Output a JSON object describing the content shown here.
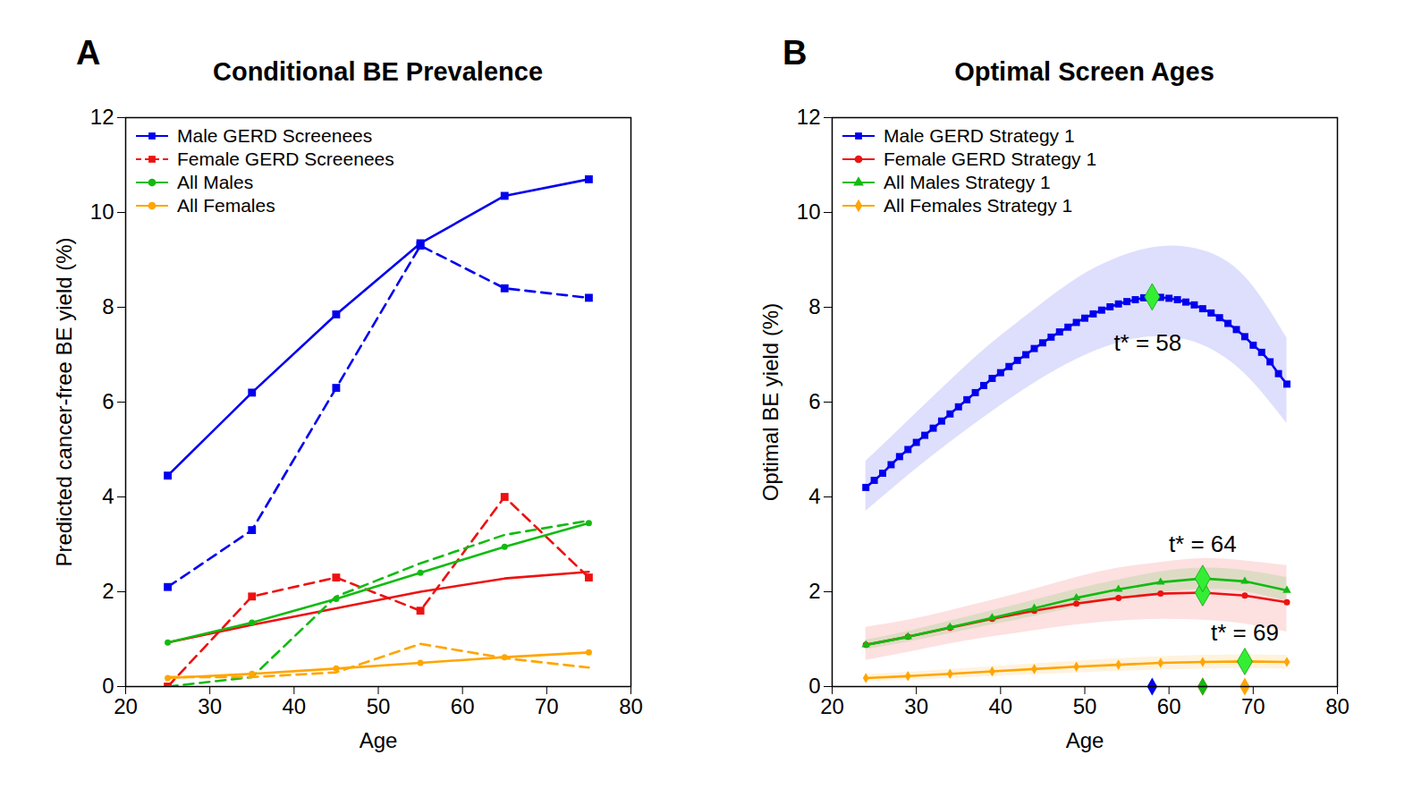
{
  "chart_data": [
    {
      "type": "line",
      "panel_label": "A",
      "title": "Conditional BE Prevalence",
      "x_label": "Age",
      "y_label": "Predicted cancer-free BE yield (%)",
      "xlim": [
        20,
        80
      ],
      "xticks": [
        20,
        30,
        40,
        50,
        60,
        70,
        80
      ],
      "ylim": [
        0,
        12
      ],
      "yticks": [
        0,
        2,
        4,
        6,
        8,
        10,
        12
      ],
      "legend": "top-left",
      "x": [
        25,
        35,
        45,
        55,
        65,
        75
      ],
      "series": [
        {
          "name": "Male GERD Screenees",
          "color": "#0000ee",
          "marker": "square",
          "line_style": "solid",
          "values": [
            4.45,
            6.2,
            7.85,
            9.35,
            10.35,
            10.7
          ]
        },
        {
          "name": null,
          "color": "#0000ee",
          "marker": "square",
          "line_style": "dashed",
          "values": [
            2.1,
            3.3,
            6.3,
            9.3,
            8.4,
            8.2
          ]
        },
        {
          "name": "Female GERD Screenees",
          "color": "#ee1111",
          "marker": "square",
          "line_style": "dashed",
          "values": [
            0.0,
            1.9,
            2.3,
            1.6,
            4.0,
            2.3
          ]
        },
        {
          "name": null,
          "color": "#ee1111",
          "line_style": "solid",
          "values": [
            0.93,
            1.3,
            1.65,
            2.0,
            2.28,
            2.42
          ]
        },
        {
          "name": "All Males",
          "color": "#11bb11",
          "marker": "circle",
          "line_style": "solid",
          "values": [
            0.93,
            1.35,
            1.85,
            2.4,
            2.95,
            3.45
          ]
        },
        {
          "name": null,
          "color": "#11bb11",
          "line_style": "dashed",
          "values": [
            0.0,
            0.2,
            1.9,
            2.6,
            3.2,
            3.5
          ]
        },
        {
          "name": "All Females",
          "color": "#ffa500",
          "marker": "circle",
          "line_style": "solid",
          "values": [
            0.18,
            0.27,
            0.38,
            0.5,
            0.62,
            0.72
          ]
        },
        {
          "name": null,
          "color": "#ffa500",
          "line_style": "dashed",
          "values": [
            0.2,
            0.2,
            0.3,
            0.9,
            0.6,
            0.4
          ]
        }
      ]
    },
    {
      "type": "line",
      "panel_label": "B",
      "title": "Optimal Screen Ages",
      "x_label": "Age",
      "y_label": "Optimal BE yield (%)",
      "xlim": [
        20,
        80
      ],
      "xticks": [
        20,
        30,
        40,
        50,
        60,
        70,
        80
      ],
      "ylim": [
        0,
        12
      ],
      "yticks": [
        0,
        2,
        4,
        6,
        8,
        10,
        12
      ],
      "legend": "top-left",
      "series": [
        {
          "name": "Male GERD Strategy 1",
          "color": "#0000ee",
          "marker": "square",
          "line_style": "solid",
          "x": [
            24,
            25,
            26,
            27,
            28,
            29,
            30,
            31,
            32,
            33,
            34,
            35,
            36,
            37,
            38,
            39,
            40,
            41,
            42,
            43,
            44,
            45,
            46,
            47,
            48,
            49,
            50,
            51,
            52,
            53,
            54,
            55,
            56,
            57,
            58,
            59,
            60,
            61,
            62,
            63,
            64,
            65,
            66,
            67,
            68,
            69,
            70,
            71,
            72,
            73,
            74
          ],
          "values": [
            4.2,
            4.35,
            4.5,
            4.68,
            4.85,
            5.0,
            5.15,
            5.3,
            5.45,
            5.6,
            5.75,
            5.9,
            6.05,
            6.2,
            6.35,
            6.5,
            6.62,
            6.75,
            6.88,
            7.0,
            7.13,
            7.25,
            7.37,
            7.48,
            7.58,
            7.68,
            7.77,
            7.86,
            7.94,
            8.01,
            8.07,
            8.12,
            8.16,
            8.2,
            8.22,
            8.21,
            8.19,
            8.16,
            8.11,
            8.05,
            7.97,
            7.88,
            7.78,
            7.66,
            7.53,
            7.38,
            7.2,
            7.05,
            6.85,
            6.6,
            6.38
          ],
          "band": {
            "x": [
              24,
              29,
              34,
              39,
              44,
              49,
              54,
              59,
              64,
              69,
              74
            ],
            "lower": [
              3.7,
              4.45,
              5.15,
              5.8,
              6.4,
              6.9,
              7.25,
              7.38,
              7.2,
              6.6,
              5.55
            ],
            "upper": [
              4.75,
              5.6,
              6.45,
              7.25,
              7.95,
              8.6,
              9.05,
              9.28,
              9.2,
              8.65,
              7.35
            ]
          },
          "optimal": {
            "x": 58,
            "y": 8.22,
            "label": "t* = 58",
            "color": "#33ee33"
          }
        },
        {
          "name": "Female GERD Strategy 1",
          "color": "#ee1111",
          "marker": "circle",
          "line_style": "solid",
          "x": [
            24,
            29,
            34,
            39,
            44,
            49,
            54,
            59,
            64,
            69,
            74
          ],
          "values": [
            0.88,
            1.05,
            1.24,
            1.43,
            1.6,
            1.75,
            1.87,
            1.96,
            1.98,
            1.92,
            1.78
          ],
          "band": {
            "x": [
              24,
              29,
              34,
              39,
              44,
              49,
              54,
              59,
              64,
              69,
              74
            ],
            "lower": [
              0.55,
              0.72,
              0.9,
              1.05,
              1.18,
              1.3,
              1.38,
              1.42,
              1.4,
              1.32,
              1.15
            ],
            "upper": [
              1.25,
              1.4,
              1.6,
              1.82,
              2.05,
              2.3,
              2.5,
              2.62,
              2.7,
              2.65,
              2.55
            ]
          },
          "optimal": {
            "x": 64,
            "y": 1.98,
            "color": "#33ee33"
          }
        },
        {
          "name": "All Males Strategy 1",
          "color": "#11bb11",
          "marker": "triangle",
          "line_style": "solid",
          "x": [
            24,
            29,
            34,
            39,
            44,
            49,
            54,
            59,
            64,
            69,
            74
          ],
          "values": [
            0.88,
            1.05,
            1.25,
            1.45,
            1.65,
            1.87,
            2.05,
            2.2,
            2.28,
            2.22,
            2.03
          ],
          "band": {
            "x": [
              24,
              29,
              34,
              39,
              44,
              49,
              54,
              59,
              64,
              69,
              74
            ],
            "lower": [
              0.78,
              0.94,
              1.12,
              1.3,
              1.48,
              1.68,
              1.85,
              1.98,
              2.05,
              2.0,
              1.8
            ],
            "upper": [
              0.98,
              1.16,
              1.38,
              1.6,
              1.82,
              2.05,
              2.25,
              2.42,
              2.5,
              2.45,
              2.3
            ]
          },
          "optimal": {
            "x": 64,
            "y": 2.28,
            "label": "t* = 64",
            "color": "#33ee33"
          }
        },
        {
          "name": "All Females Strategy 1",
          "color": "#ffa500",
          "marker": "diamond",
          "line_style": "solid",
          "x": [
            24,
            29,
            34,
            39,
            44,
            49,
            54,
            59,
            64,
            69,
            74
          ],
          "values": [
            0.18,
            0.22,
            0.27,
            0.32,
            0.37,
            0.42,
            0.46,
            0.5,
            0.52,
            0.53,
            0.52
          ],
          "band": {
            "x": [
              24,
              29,
              34,
              39,
              44,
              49,
              54,
              59,
              64,
              69,
              74
            ],
            "lower": [
              0.1,
              0.13,
              0.17,
              0.21,
              0.25,
              0.29,
              0.32,
              0.35,
              0.37,
              0.38,
              0.37
            ],
            "upper": [
              0.25,
              0.3,
              0.36,
              0.42,
              0.48,
              0.54,
              0.59,
              0.63,
              0.66,
              0.67,
              0.66
            ]
          },
          "optimal": {
            "x": 69,
            "y": 0.53,
            "label": "t* = 69",
            "color": "#33ee33"
          }
        }
      ]
    }
  ]
}
